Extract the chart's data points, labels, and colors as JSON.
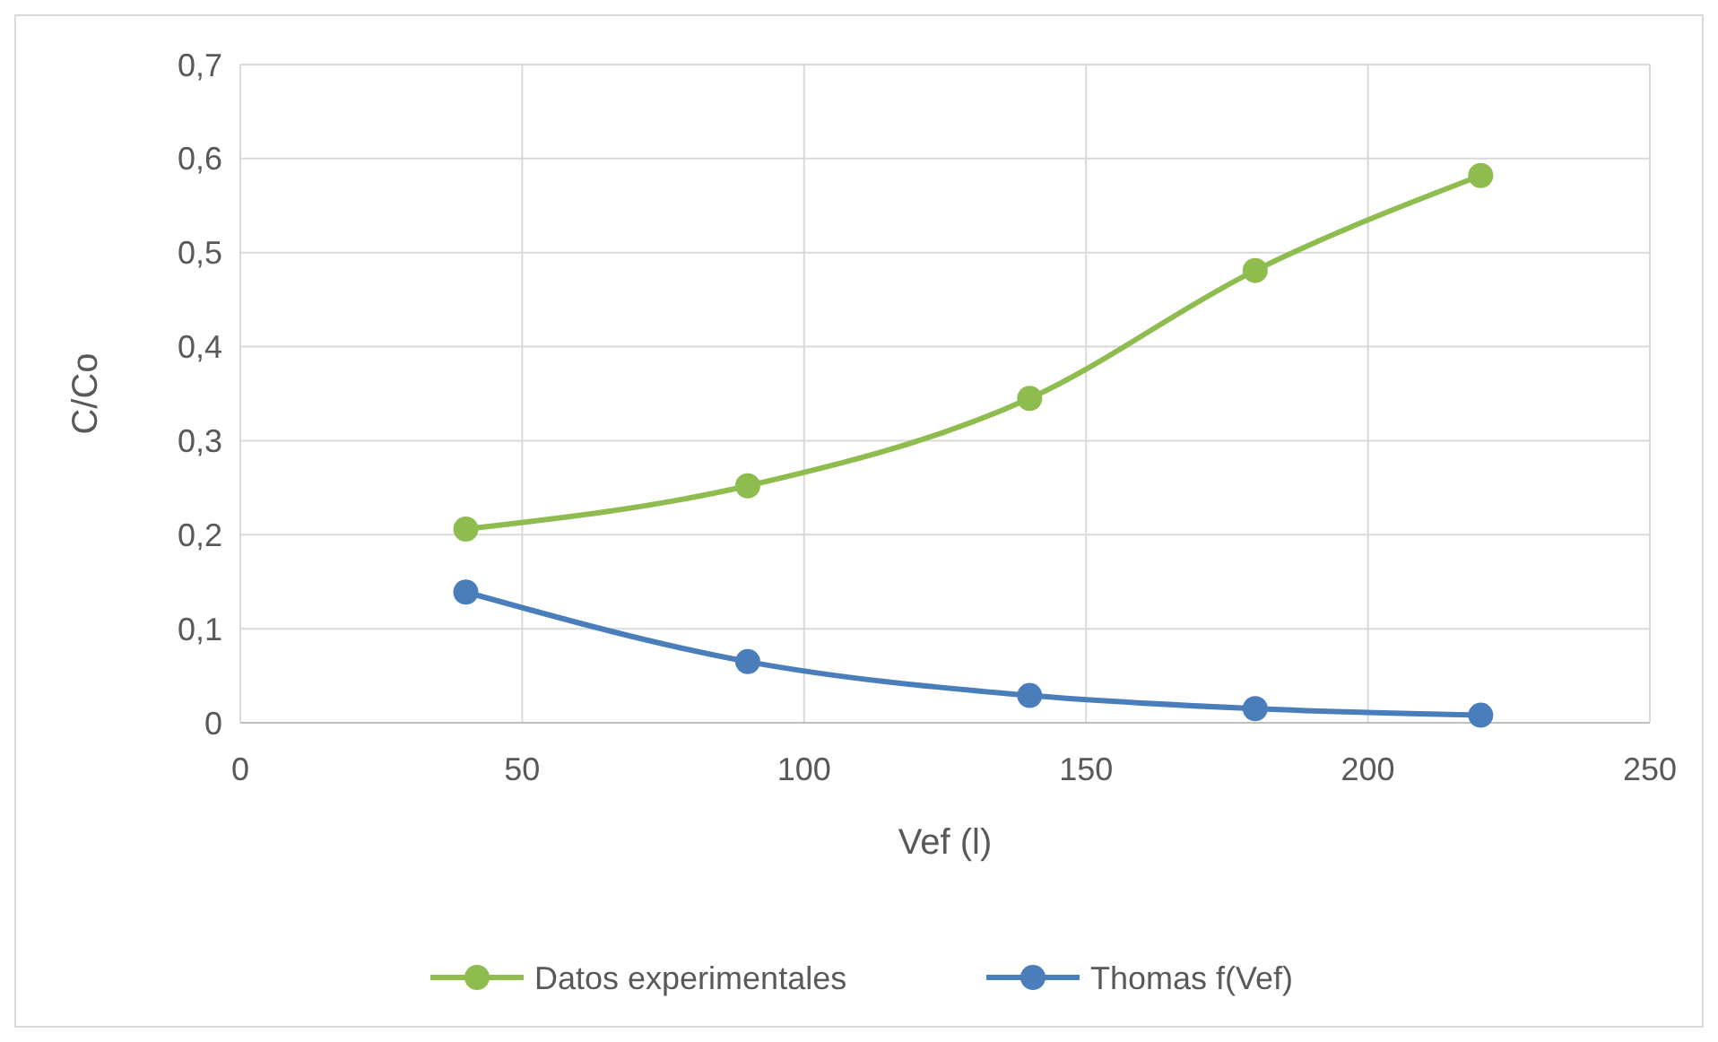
{
  "chart_data": {
    "type": "line",
    "xlabel": "Vef (l)",
    "ylabel": "C/Co",
    "x": [
      40,
      90,
      140,
      180,
      220
    ],
    "series": [
      {
        "name": "Datos experimentales",
        "color": "#8fbc4f",
        "values": [
          0.206,
          0.252,
          0.345,
          0.481,
          0.582
        ]
      },
      {
        "name": "Thomas f(Vef)",
        "color": "#4a7ebb",
        "values": [
          0.139,
          0.065,
          0.029,
          0.015,
          0.008
        ]
      }
    ],
    "xlim": [
      0,
      250
    ],
    "xticks": [
      0,
      50,
      100,
      150,
      200,
      250
    ],
    "ylim": [
      0,
      0.7
    ],
    "yticks": [
      {
        "value": 0,
        "label": "0"
      },
      {
        "value": 0.1,
        "label": "0,1"
      },
      {
        "value": 0.2,
        "label": "0,2"
      },
      {
        "value": 0.3,
        "label": "0,3"
      },
      {
        "value": 0.4,
        "label": "0,4"
      },
      {
        "value": 0.5,
        "label": "0,5"
      },
      {
        "value": 0.6,
        "label": "0,6"
      },
      {
        "value": 0.7,
        "label": "0,7"
      }
    ],
    "grid": true,
    "legend": "bottom",
    "marker": "circle",
    "line_style": "solid"
  }
}
